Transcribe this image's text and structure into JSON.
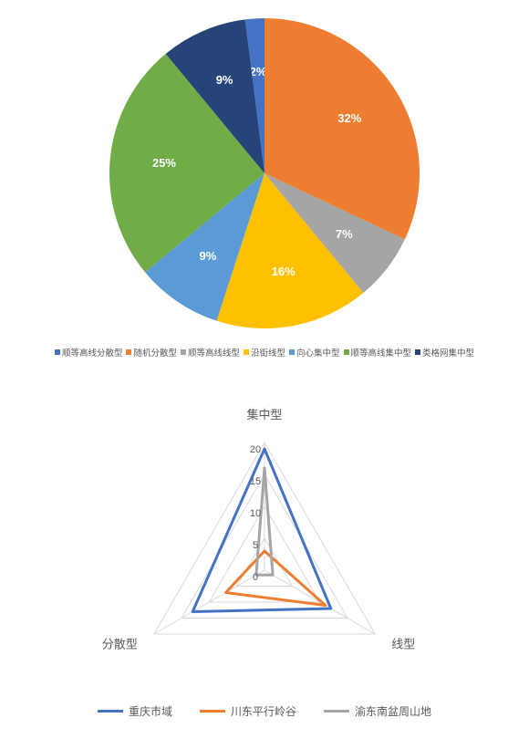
{
  "pie_chart": {
    "type": "pie",
    "background_color": "#ffffff",
    "label_fontsize": 13,
    "label_color": "#ffffff",
    "label_weight": "bold",
    "legend_fontsize": 9.5,
    "legend_color": "#595959",
    "slices": [
      {
        "label": "顺等高线分散型",
        "value": 2,
        "color": "#4472c4",
        "pct_label": "2%"
      },
      {
        "label": "随机分散型",
        "value": 32,
        "color": "#ed7d31",
        "pct_label": "32%"
      },
      {
        "label": "顺等高线线型",
        "value": 7,
        "color": "#a5a5a5",
        "pct_label": "7%"
      },
      {
        "label": "沿街线型",
        "value": 16,
        "color": "#ffc000",
        "pct_label": "16%"
      },
      {
        "label": "向心集中型",
        "value": 9,
        "color": "#5b9bd5",
        "pct_label": "9%"
      },
      {
        "label": "顺等高线集中型",
        "value": 25,
        "color": "#70ad47",
        "pct_label": "25%"
      },
      {
        "label": "类格网集中型",
        "value": 9,
        "color": "#264478",
        "pct_label": "9%"
      }
    ]
  },
  "radar_chart": {
    "type": "radar",
    "background_color": "#ffffff",
    "axes": [
      "集中型",
      "线型",
      "分散型"
    ],
    "max": 20,
    "ticks": [
      0,
      5,
      10,
      15,
      20
    ],
    "tick_fontsize": 11,
    "tick_color": "#595959",
    "axis_label_fontsize": 13,
    "axis_label_color": "#595959",
    "grid_color": "#d9d9d9",
    "grid_width": 1,
    "line_width": 3,
    "series": [
      {
        "name": "重庆市域",
        "color": "#4472c4",
        "values": [
          19,
          12,
          13
        ]
      },
      {
        "name": "川东平行岭谷",
        "color": "#ed7d31",
        "values": [
          3,
          11,
          7
        ]
      },
      {
        "name": "渝东南盆周山地",
        "color": "#a5a5a5",
        "values": [
          16,
          1.5,
          1.5
        ]
      }
    ],
    "legend_fontsize": 12,
    "legend_color": "#595959"
  }
}
